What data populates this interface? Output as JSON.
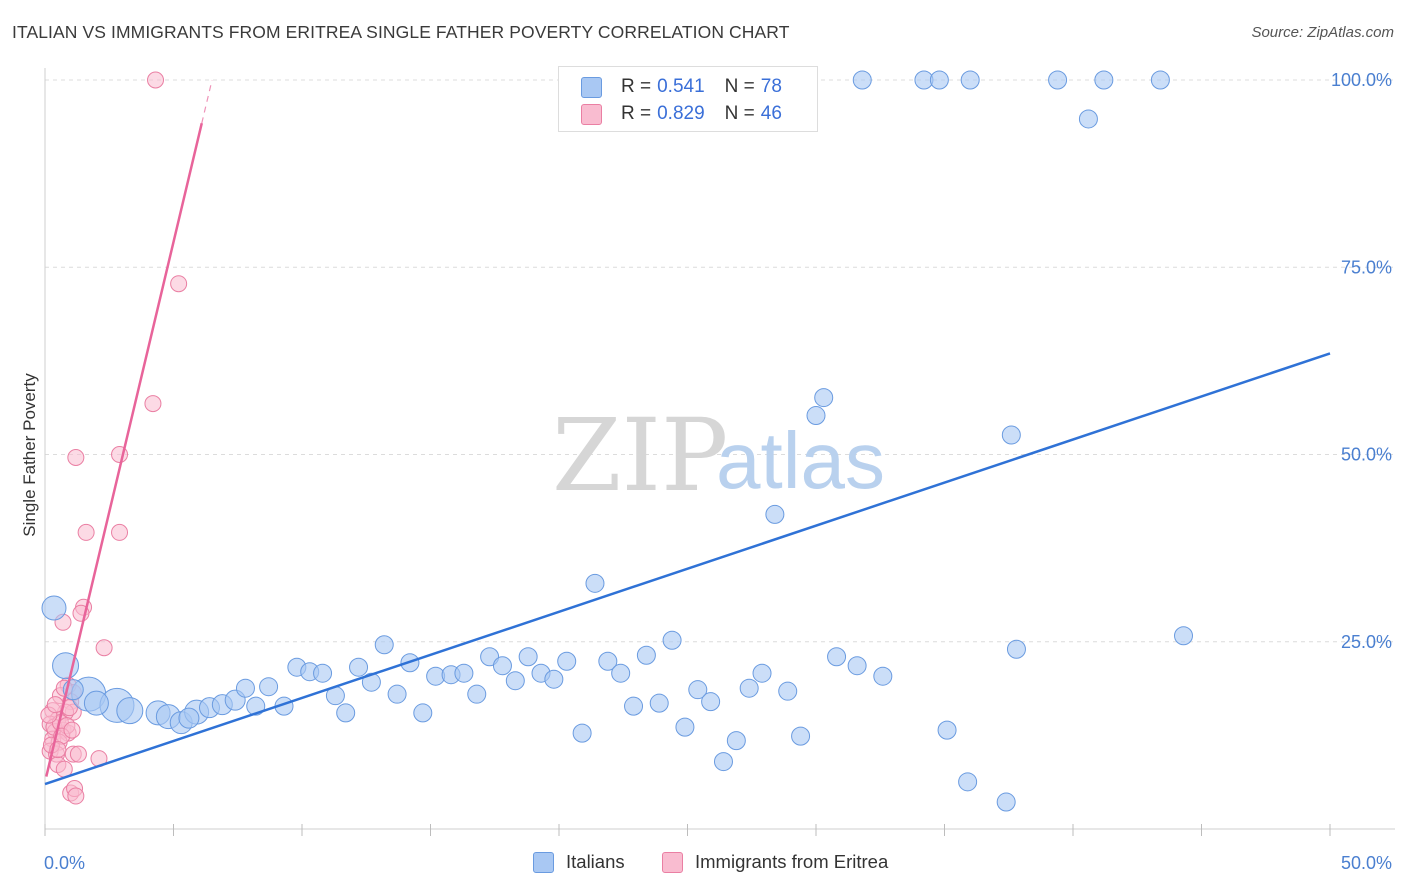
{
  "title": "ITALIAN VS IMMIGRANTS FROM ERITREA SINGLE FATHER POVERTY CORRELATION CHART",
  "source": "Source: ZipAtlas.com",
  "watermark": {
    "zip": "ZIP",
    "atlas": "atlas"
  },
  "legend": {
    "rows": [
      {
        "r_label": "R = ",
        "r_value": "0.541",
        "n_label": "N = ",
        "n_value": "78"
      },
      {
        "r_label": "R = ",
        "r_value": "0.829",
        "n_label": "N = ",
        "n_value": "46"
      }
    ]
  },
  "bottom_legend": {
    "series1": "Italians",
    "series2": "Immigrants from Eritrea"
  },
  "colors": {
    "italians_fill": "#a9c8f3",
    "italians_stroke": "#6a9be0",
    "italians_line": "#2f72d6",
    "eritrea_fill": "#f9bcd0",
    "eritrea_stroke": "#ea7fa3",
    "eritrea_line": "#e8649a",
    "tick_text": "#4a7fd0",
    "grid": "#dcdcdc"
  },
  "chart_data": {
    "type": "scatter",
    "title": "ITALIAN VS IMMIGRANTS FROM ERITREA SINGLE FATHER POVERTY CORRELATION CHART",
    "xlabel": "",
    "ylabel": "Single Father Poverty",
    "xlim": [
      0,
      50
    ],
    "ylim": [
      0,
      102
    ],
    "x_tick_labels": [
      "0.0%",
      "50.0%"
    ],
    "y_ticks": [
      {
        "value": 25,
        "label": "25.0%"
      },
      {
        "value": 50,
        "label": "50.0%"
      },
      {
        "value": 75,
        "label": "75.0%"
      },
      {
        "value": 100,
        "label": "100.0%"
      }
    ],
    "grid": "horizontal dashed",
    "legend_position": "top-center",
    "series": [
      {
        "name": "Italians",
        "r": 0.541,
        "n": 78,
        "trend": {
          "x0": 0.0,
          "y0": 6.0,
          "x1": 50.0,
          "y1": 63.5
        },
        "points": [
          [
            0.35,
            29.5,
            12
          ],
          [
            0.8,
            21.8,
            13
          ],
          [
            1.7,
            18.0,
            17
          ],
          [
            2.8,
            16.5,
            17
          ],
          [
            3.3,
            15.8,
            13
          ],
          [
            4.4,
            15.5,
            12
          ],
          [
            4.8,
            15.0,
            12
          ],
          [
            5.3,
            14.2,
            11
          ],
          [
            5.9,
            15.6,
            12
          ],
          [
            6.4,
            16.2,
            10
          ],
          [
            6.9,
            16.6,
            10
          ],
          [
            7.4,
            17.2,
            10
          ],
          [
            7.8,
            18.8,
            9
          ],
          [
            8.2,
            16.4,
            9
          ],
          [
            8.7,
            19.0,
            9
          ],
          [
            9.3,
            16.4,
            9
          ],
          [
            9.8,
            21.6,
            9
          ],
          [
            10.3,
            21.0,
            9
          ],
          [
            10.8,
            20.8,
            9
          ],
          [
            11.3,
            17.8,
            9
          ],
          [
            11.7,
            15.5,
            9
          ],
          [
            12.2,
            21.6,
            9
          ],
          [
            12.7,
            19.6,
            9
          ],
          [
            13.2,
            24.6,
            9
          ],
          [
            13.7,
            18.0,
            9
          ],
          [
            14.2,
            22.2,
            9
          ],
          [
            14.7,
            15.5,
            9
          ],
          [
            15.2,
            20.4,
            9
          ],
          [
            15.8,
            20.6,
            9
          ],
          [
            16.3,
            20.8,
            9
          ],
          [
            16.8,
            18.0,
            9
          ],
          [
            17.3,
            23.0,
            9
          ],
          [
            17.8,
            21.8,
            9
          ],
          [
            18.3,
            19.8,
            9
          ],
          [
            18.8,
            23.0,
            9
          ],
          [
            19.3,
            20.8,
            9
          ],
          [
            19.8,
            20.0,
            9
          ],
          [
            20.3,
            22.4,
            9
          ],
          [
            20.9,
            12.8,
            9
          ],
          [
            21.4,
            32.8,
            9
          ],
          [
            21.9,
            22.4,
            9
          ],
          [
            22.4,
            20.8,
            9
          ],
          [
            22.9,
            16.4,
            9
          ],
          [
            23.4,
            23.2,
            9
          ],
          [
            23.9,
            16.8,
            9
          ],
          [
            24.4,
            25.2,
            9
          ],
          [
            24.9,
            13.6,
            9
          ],
          [
            25.4,
            18.6,
            9
          ],
          [
            25.9,
            17.0,
            9
          ],
          [
            26.4,
            9.0,
            9
          ],
          [
            26.9,
            11.8,
            9
          ],
          [
            27.4,
            18.8,
            9
          ],
          [
            27.9,
            20.8,
            9
          ],
          [
            28.4,
            42.0,
            9
          ],
          [
            28.9,
            18.4,
            9
          ],
          [
            29.4,
            12.4,
            9
          ],
          [
            30.0,
            55.2,
            9
          ],
          [
            30.3,
            57.6,
            9
          ],
          [
            30.8,
            23.0,
            9
          ],
          [
            31.6,
            21.8,
            9
          ],
          [
            31.8,
            100.0,
            9
          ],
          [
            32.6,
            20.4,
            9
          ],
          [
            34.2,
            100.0,
            9
          ],
          [
            34.8,
            100.0,
            9
          ],
          [
            35.1,
            13.2,
            9
          ],
          [
            35.9,
            6.3,
            9
          ],
          [
            36.0,
            100.0,
            9
          ],
          [
            37.4,
            3.6,
            9
          ],
          [
            37.6,
            52.6,
            9
          ],
          [
            37.8,
            24.0,
            9
          ],
          [
            39.4,
            100.0,
            9
          ],
          [
            40.6,
            94.8,
            9
          ],
          [
            41.2,
            100.0,
            9
          ],
          [
            43.4,
            100.0,
            9
          ],
          [
            44.3,
            25.8,
            9
          ],
          [
            2.0,
            16.8,
            12
          ],
          [
            5.6,
            14.8,
            10
          ],
          [
            1.1,
            18.6,
            10
          ]
        ]
      },
      {
        "name": "Immigrants from Eritrea",
        "r": 0.829,
        "n": 46,
        "trend": {
          "x0": 0.05,
          "y0": 7.0,
          "x1": 6.5,
          "y1": 100.0
        },
        "trend_solid_until_x": 6.1,
        "points": [
          [
            4.3,
            100.0,
            8
          ],
          [
            5.2,
            72.8,
            8
          ],
          [
            4.2,
            56.8,
            8
          ],
          [
            1.2,
            49.6,
            8
          ],
          [
            2.9,
            50.0,
            8
          ],
          [
            1.6,
            39.6,
            8
          ],
          [
            2.9,
            39.6,
            8
          ],
          [
            1.5,
            29.6,
            8
          ],
          [
            0.7,
            27.6,
            8
          ],
          [
            1.4,
            28.8,
            8
          ],
          [
            2.3,
            24.2,
            8
          ],
          [
            0.9,
            19.2,
            8
          ],
          [
            1.1,
            18.2,
            8
          ],
          [
            0.6,
            17.8,
            8
          ],
          [
            1.0,
            17.0,
            8
          ],
          [
            1.1,
            15.6,
            8
          ],
          [
            0.8,
            15.6,
            8
          ],
          [
            0.3,
            15.8,
            8
          ],
          [
            0.5,
            14.6,
            8
          ],
          [
            0.2,
            14.0,
            8
          ],
          [
            0.7,
            13.2,
            8
          ],
          [
            0.4,
            13.0,
            8
          ],
          [
            0.9,
            12.8,
            8
          ],
          [
            0.3,
            12.0,
            8
          ],
          [
            0.55,
            11.6,
            8
          ],
          [
            0.2,
            10.4,
            8
          ],
          [
            0.45,
            10.0,
            8
          ],
          [
            1.1,
            10.0,
            8
          ],
          [
            1.3,
            10.0,
            8
          ],
          [
            2.1,
            9.4,
            8
          ],
          [
            0.5,
            8.6,
            8
          ],
          [
            0.75,
            8.0,
            8
          ],
          [
            1.0,
            4.8,
            8
          ],
          [
            1.15,
            5.4,
            8
          ],
          [
            1.2,
            4.4,
            8
          ],
          [
            0.35,
            13.6,
            8
          ],
          [
            0.6,
            14.2,
            8
          ],
          [
            0.85,
            13.8,
            8
          ],
          [
            0.95,
            16.2,
            8
          ],
          [
            0.25,
            11.2,
            8
          ],
          [
            0.65,
            12.4,
            8
          ],
          [
            0.15,
            15.2,
            8
          ],
          [
            0.4,
            16.6,
            8
          ],
          [
            0.75,
            18.8,
            8
          ],
          [
            1.05,
            13.2,
            8
          ],
          [
            0.5,
            10.6,
            8
          ]
        ]
      }
    ]
  }
}
